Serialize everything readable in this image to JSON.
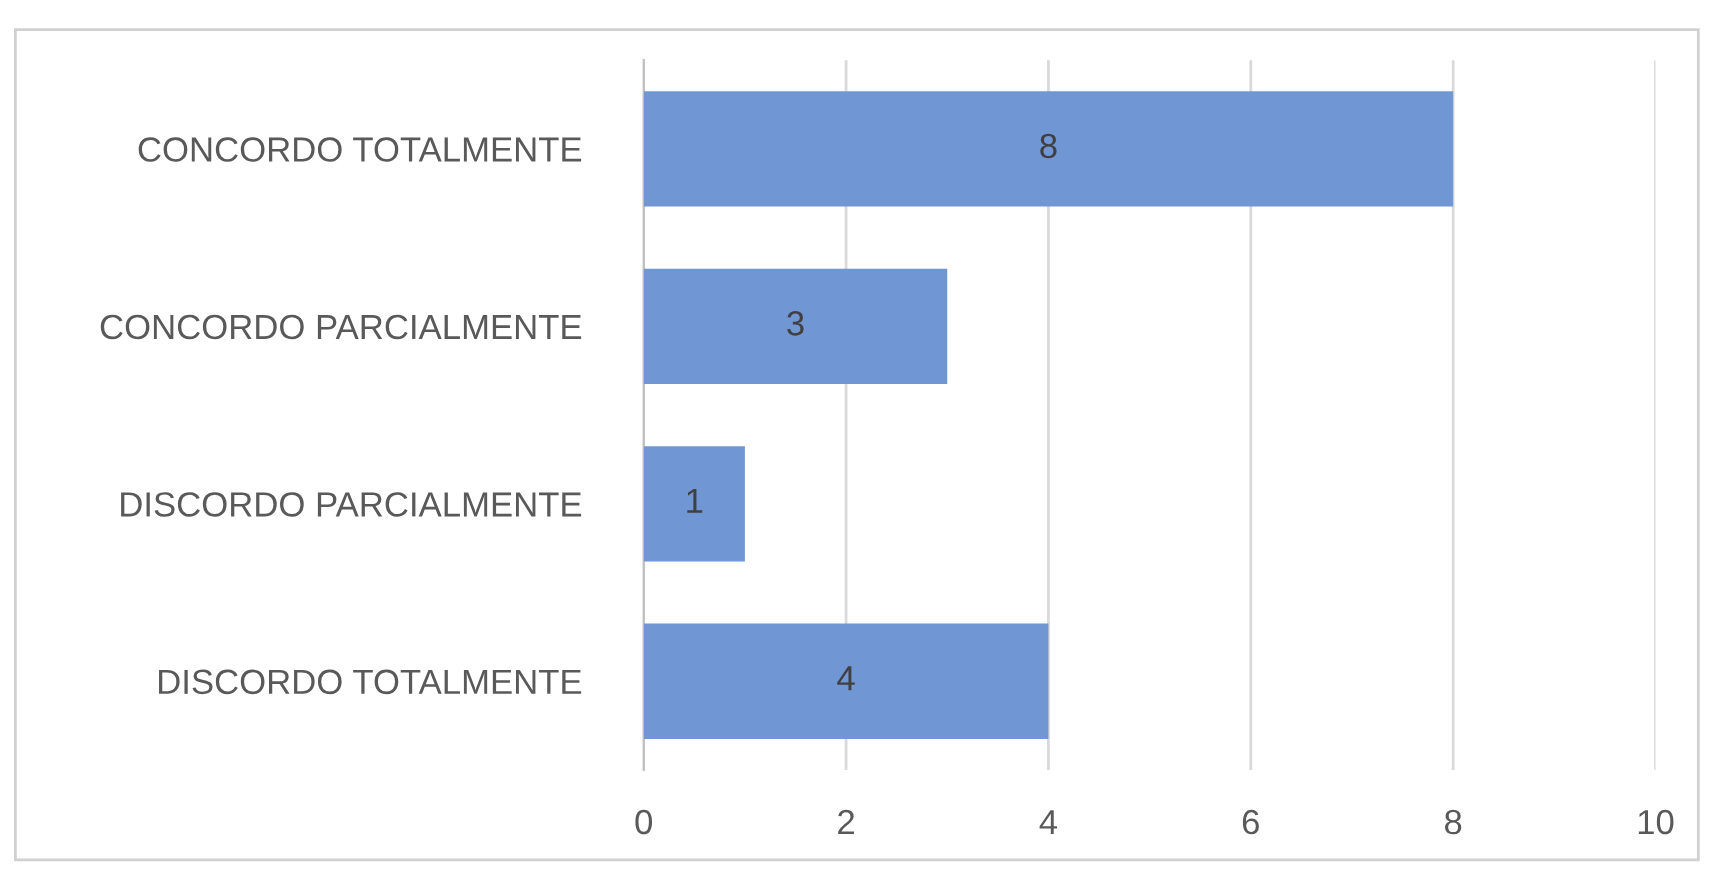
{
  "chart_data": {
    "type": "bar",
    "orientation": "horizontal",
    "categories": [
      "CONCORDO TOTALMENTE",
      "CONCORDO PARCIALMENTE",
      "DISCORDO PARCIALMENTE",
      "DISCORDO TOTALMENTE"
    ],
    "values": [
      8,
      3,
      1,
      4
    ],
    "color": "#7096d4",
    "xlim": [
      0,
      10
    ],
    "xticks": [
      0,
      2,
      4,
      6,
      8,
      10
    ],
    "grid": "x",
    "data_labels": true
  }
}
